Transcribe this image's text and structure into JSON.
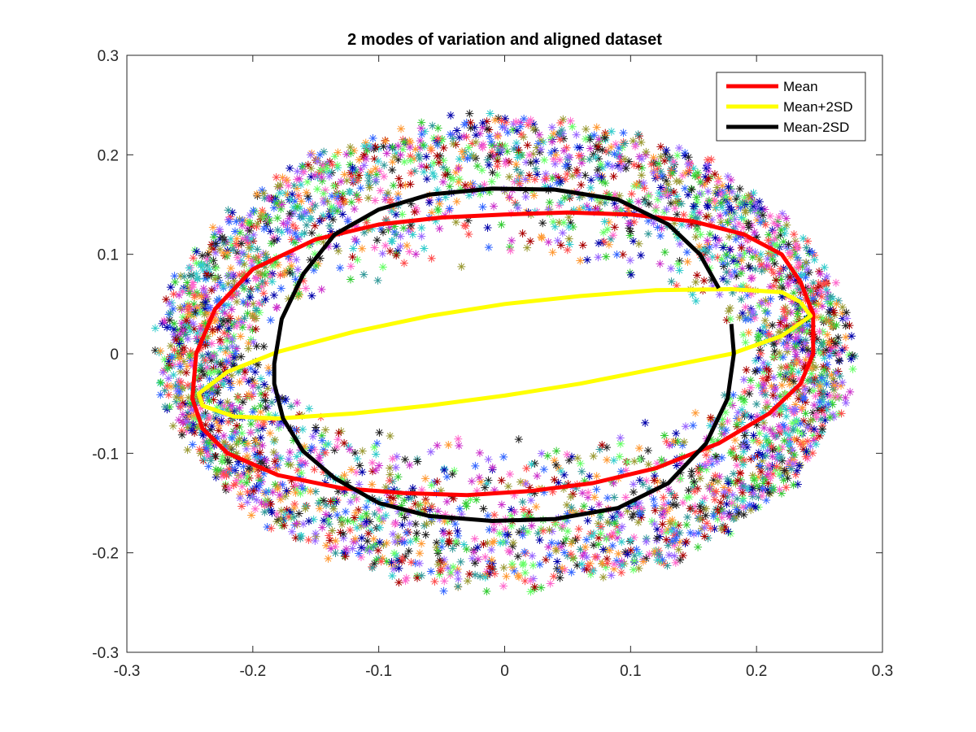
{
  "chart_data": {
    "type": "scatter",
    "title": "2 modes of variation and aligned dataset",
    "xlabel": "",
    "ylabel": "",
    "xlim": [
      -0.3,
      0.3
    ],
    "ylim": [
      -0.3,
      0.3
    ],
    "xticks": [
      -0.3,
      -0.2,
      -0.1,
      0,
      0.1,
      0.2,
      0.3
    ],
    "yticks": [
      -0.3,
      -0.2,
      -0.1,
      0,
      0.1,
      0.2,
      0.3
    ],
    "xtick_labels": [
      "-0.3",
      "-0.2",
      "-0.1",
      "0",
      "0.1",
      "0.2",
      "0.3"
    ],
    "ytick_labels": [
      "-0.3",
      "-0.2",
      "-0.1",
      "0",
      "0.1",
      "0.2",
      "0.3"
    ],
    "grid": false,
    "legend_position": "top-right",
    "scatter_marker": "asterisk",
    "scatter_colors": [
      "#ff4d4d",
      "#33cc33",
      "#3366ff",
      "#cc33cc",
      "#33cccc",
      "#999933",
      "#222222",
      "#ff9933",
      "#66ff66",
      "#9966ff",
      "#ff66cc",
      "#339999",
      "#0000aa",
      "#aa0000"
    ],
    "scatter_region": {
      "shape": "elliptical-ring",
      "center": [
        0.0,
        0.0
      ],
      "outer_radii": [
        0.27,
        0.235
      ],
      "inner_radii": [
        0.19,
        0.085
      ],
      "approx_point_count": 4000
    },
    "series": [
      {
        "name": "Mean",
        "color": "#ff0000",
        "x": [
          0.235,
          0.22,
          0.19,
          0.15,
          0.1,
          0.05,
          0.0,
          -0.05,
          -0.1,
          -0.15,
          -0.2,
          -0.23,
          -0.245,
          -0.248,
          -0.24,
          -0.22,
          -0.18,
          -0.13,
          -0.08,
          -0.03,
          0.02,
          0.07,
          0.12,
          0.17,
          0.21,
          0.235,
          0.245,
          0.245,
          0.235
        ],
        "y": [
          0.072,
          0.1,
          0.12,
          0.133,
          0.14,
          0.142,
          0.14,
          0.137,
          0.13,
          0.115,
          0.085,
          0.045,
          0.0,
          -0.045,
          -0.075,
          -0.1,
          -0.122,
          -0.135,
          -0.14,
          -0.142,
          -0.138,
          -0.13,
          -0.115,
          -0.09,
          -0.06,
          -0.03,
          0.0,
          0.04,
          0.072
        ]
      },
      {
        "name": "Mean+2SD",
        "color": "#ffff00",
        "x": [
          0.235,
          0.22,
          0.18,
          0.12,
          0.06,
          0.0,
          -0.06,
          -0.12,
          -0.18,
          -0.22,
          -0.243,
          -0.24,
          -0.215,
          -0.18,
          -0.12,
          -0.06,
          0.0,
          0.06,
          0.12,
          0.18,
          0.22,
          0.243,
          0.235
        ],
        "y": [
          0.052,
          0.062,
          0.065,
          0.064,
          0.058,
          0.05,
          0.038,
          0.022,
          0.002,
          -0.018,
          -0.04,
          -0.052,
          -0.063,
          -0.065,
          -0.06,
          -0.052,
          -0.042,
          -0.03,
          -0.015,
          0.0,
          0.018,
          0.038,
          0.052
        ]
      },
      {
        "name": "Mean-2SD",
        "color": "#000000",
        "x": [
          0.17,
          0.155,
          0.13,
          0.09,
          0.04,
          -0.01,
          -0.06,
          -0.1,
          -0.135,
          -0.16,
          -0.177,
          -0.183,
          -0.183,
          -0.176,
          -0.16,
          -0.135,
          -0.1,
          -0.06,
          -0.01,
          0.04,
          0.09,
          0.13,
          0.16,
          0.177,
          0.182,
          0.18
        ],
        "y": [
          0.066,
          0.1,
          0.13,
          0.155,
          0.165,
          0.166,
          0.16,
          0.145,
          0.12,
          0.08,
          0.035,
          -0.01,
          -0.03,
          -0.065,
          -0.098,
          -0.125,
          -0.15,
          -0.163,
          -0.168,
          -0.166,
          -0.155,
          -0.13,
          -0.09,
          -0.045,
          0.0,
          0.03
        ]
      }
    ]
  }
}
